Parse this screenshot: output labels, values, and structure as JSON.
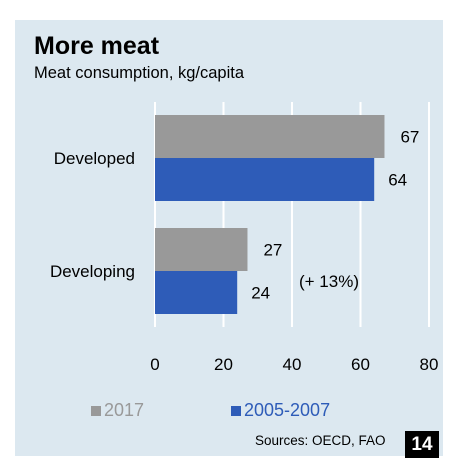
{
  "chart_data": {
    "type": "bar",
    "orientation": "horizontal",
    "title": "More meat",
    "subtitle": "Meat consumption, kg/capita",
    "categories": [
      "Developed",
      "Developing"
    ],
    "series": [
      {
        "name": "2017",
        "color": "#999999",
        "values": [
          67,
          27
        ]
      },
      {
        "name": "2005-2007",
        "color": "#2e5cb8",
        "values": [
          64,
          24
        ]
      }
    ],
    "annotation": "(+ 13%)",
    "x_ticks": [
      "0",
      "20",
      "40",
      "60",
      "80"
    ],
    "xlim": [
      0,
      80
    ],
    "grid": true,
    "legend_position": "bottom"
  },
  "source_text": "Sources: OECD, FAO",
  "page_number": "14"
}
